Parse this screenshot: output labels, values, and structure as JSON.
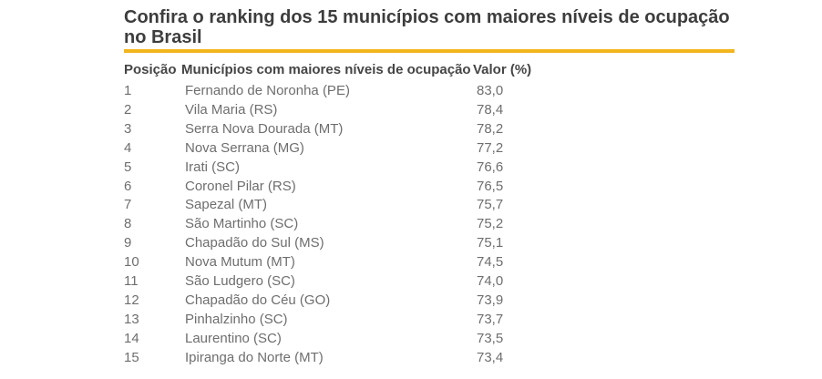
{
  "header": {
    "title": "Confira o ranking dos 15 municípios com maiores níveis de ocupação no Brasil"
  },
  "colors": {
    "accent_underline": "#f2b51d",
    "title_text": "#3d3d3d",
    "table_header_text": "#454545",
    "table_body_text": "#6e6e6e"
  },
  "table": {
    "columns": [
      "Posição",
      "Municípios com maiores níveis de ocupação",
      "Valor (%)"
    ],
    "rows": [
      {
        "position": "1",
        "municipality": "Fernando de Noronha (PE)",
        "value": "83,0"
      },
      {
        "position": "2",
        "municipality": "Vila Maria (RS)",
        "value": "78,4"
      },
      {
        "position": "3",
        "municipality": "Serra Nova Dourada (MT)",
        "value": "78,2"
      },
      {
        "position": "4",
        "municipality": "Nova Serrana (MG)",
        "value": "77,2"
      },
      {
        "position": "5",
        "municipality": "Irati (SC)",
        "value": "76,6"
      },
      {
        "position": "6",
        "municipality": "Coronel Pilar (RS)",
        "value": "76,5"
      },
      {
        "position": "7",
        "municipality": "Sapezal (MT)",
        "value": "75,7"
      },
      {
        "position": "8",
        "municipality": "São Martinho (SC)",
        "value": "75,2"
      },
      {
        "position": "9",
        "municipality": "Chapadão do Sul (MS)",
        "value": "75,1"
      },
      {
        "position": "10",
        "municipality": "Nova Mutum (MT)",
        "value": "74,5"
      },
      {
        "position": "11",
        "municipality": "São Ludgero (SC)",
        "value": "74,0"
      },
      {
        "position": "12",
        "municipality": "Chapadão do Céu (GO)",
        "value": "73,9"
      },
      {
        "position": "13",
        "municipality": "Pinhalzinho (SC)",
        "value": "73,7"
      },
      {
        "position": "14",
        "municipality": "Laurentino (SC)",
        "value": "73,5"
      },
      {
        "position": "15",
        "municipality": "Ipiranga do Norte (MT)",
        "value": "73,4"
      }
    ]
  },
  "chart_data": {
    "type": "table",
    "title": "Confira o ranking dos 15 municípios com maiores níveis de ocupação no Brasil",
    "columns": [
      "Posição",
      "Municípios com maiores níveis de ocupação",
      "Valor (%)"
    ],
    "categories": [
      "Fernando de Noronha (PE)",
      "Vila Maria (RS)",
      "Serra Nova Dourada (MT)",
      "Nova Serrana (MG)",
      "Irati (SC)",
      "Coronel Pilar (RS)",
      "Sapezal (MT)",
      "São Martinho (SC)",
      "Chapadão do Sul (MS)",
      "Nova Mutum (MT)",
      "São Ludgero (SC)",
      "Chapadão do Céu (GO)",
      "Pinhalzinho (SC)",
      "Laurentino (SC)",
      "Ipiranga do Norte (MT)"
    ],
    "values": [
      83.0,
      78.4,
      78.2,
      77.2,
      76.6,
      76.5,
      75.7,
      75.2,
      75.1,
      74.5,
      74.0,
      73.9,
      73.7,
      73.5,
      73.4
    ],
    "value_unit": "%"
  }
}
